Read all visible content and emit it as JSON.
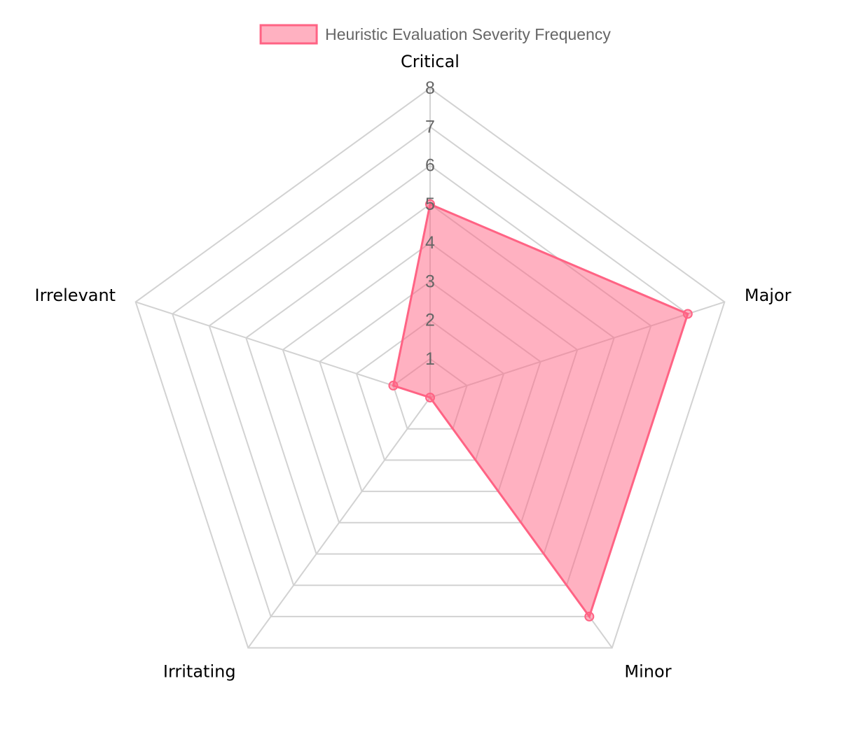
{
  "chart_data": {
    "type": "radar",
    "labels": [
      "Critical",
      "Major",
      "Minor",
      "Irritating",
      "Irrelevant"
    ],
    "series": [
      {
        "name": "Heuristic Evaluation Severity Frequency",
        "values": [
          5,
          7,
          7,
          0,
          1
        ]
      }
    ],
    "r_range": [
      0,
      8
    ],
    "ticks": [
      "1",
      "2",
      "3",
      "4",
      "5",
      "6",
      "7",
      "8"
    ],
    "grid": true,
    "legend_position": "top",
    "colors": {
      "series_fill": "rgba(255, 99, 132, 0.5)",
      "series_stroke": "#ff6384",
      "grid": "#d2d2d2",
      "tick_text": "#666666",
      "point_label_text": "#000000",
      "legend_text": "#666666"
    }
  }
}
